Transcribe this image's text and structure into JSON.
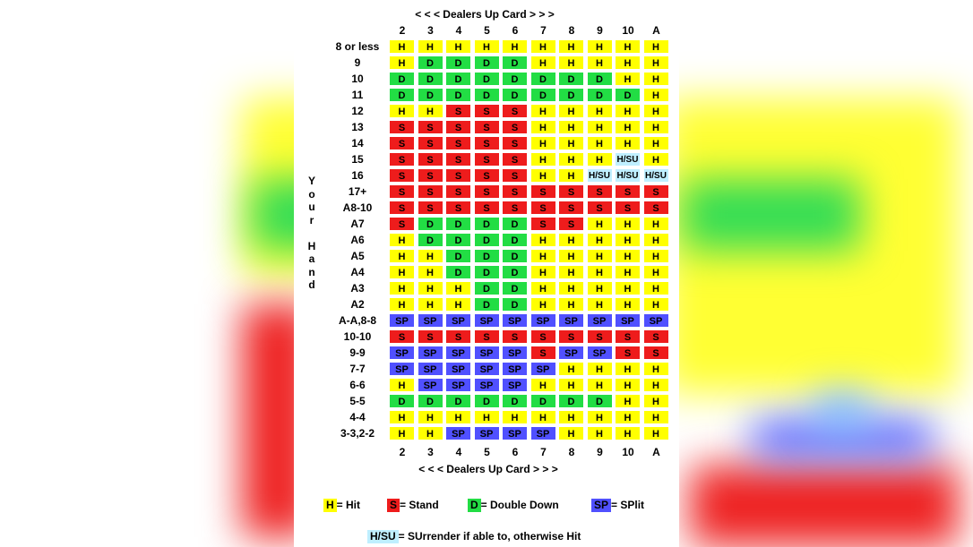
{
  "header": {
    "top": "< < <  Dealers Up Card  > > >",
    "bottom": "< < < Dealers Up Card > > >"
  },
  "dealer_cards": [
    "2",
    "3",
    "4",
    "5",
    "6",
    "7",
    "8",
    "9",
    "10",
    "A"
  ],
  "side_label": [
    "Y",
    "o",
    "u",
    "r",
    "",
    "H",
    "a",
    "n",
    "d"
  ],
  "rows": [
    {
      "label": "8 or less",
      "cells": [
        "H",
        "H",
        "H",
        "H",
        "H",
        "H",
        "H",
        "H",
        "H",
        "H"
      ]
    },
    {
      "label": "9",
      "cells": [
        "H",
        "D",
        "D",
        "D",
        "D",
        "H",
        "H",
        "H",
        "H",
        "H"
      ]
    },
    {
      "label": "10",
      "cells": [
        "D",
        "D",
        "D",
        "D",
        "D",
        "D",
        "D",
        "D",
        "H",
        "H"
      ]
    },
    {
      "label": "11",
      "cells": [
        "D",
        "D",
        "D",
        "D",
        "D",
        "D",
        "D",
        "D",
        "D",
        "H"
      ]
    },
    {
      "label": "12",
      "cells": [
        "H",
        "H",
        "S",
        "S",
        "S",
        "H",
        "H",
        "H",
        "H",
        "H"
      ]
    },
    {
      "label": "13",
      "cells": [
        "S",
        "S",
        "S",
        "S",
        "S",
        "H",
        "H",
        "H",
        "H",
        "H"
      ]
    },
    {
      "label": "14",
      "cells": [
        "S",
        "S",
        "S",
        "S",
        "S",
        "H",
        "H",
        "H",
        "H",
        "H"
      ]
    },
    {
      "label": "15",
      "cells": [
        "S",
        "S",
        "S",
        "S",
        "S",
        "H",
        "H",
        "H",
        "H/SU",
        "H"
      ]
    },
    {
      "label": "16",
      "cells": [
        "S",
        "S",
        "S",
        "S",
        "S",
        "H",
        "H",
        "H/SU",
        "H/SU",
        "H/SU"
      ]
    },
    {
      "label": "17+",
      "cells": [
        "S",
        "S",
        "S",
        "S",
        "S",
        "S",
        "S",
        "S",
        "S",
        "S"
      ]
    },
    {
      "label": "A8-10",
      "cells": [
        "S",
        "S",
        "S",
        "S",
        "S",
        "S",
        "S",
        "S",
        "S",
        "S"
      ]
    },
    {
      "label": "A7",
      "cells": [
        "S",
        "D",
        "D",
        "D",
        "D",
        "S",
        "S",
        "H",
        "H",
        "H"
      ]
    },
    {
      "label": "A6",
      "cells": [
        "H",
        "D",
        "D",
        "D",
        "D",
        "H",
        "H",
        "H",
        "H",
        "H"
      ]
    },
    {
      "label": "A5",
      "cells": [
        "H",
        "H",
        "D",
        "D",
        "D",
        "H",
        "H",
        "H",
        "H",
        "H"
      ]
    },
    {
      "label": "A4",
      "cells": [
        "H",
        "H",
        "D",
        "D",
        "D",
        "H",
        "H",
        "H",
        "H",
        "H"
      ]
    },
    {
      "label": "A3",
      "cells": [
        "H",
        "H",
        "H",
        "D",
        "D",
        "H",
        "H",
        "H",
        "H",
        "H"
      ]
    },
    {
      "label": "A2",
      "cells": [
        "H",
        "H",
        "H",
        "D",
        "D",
        "H",
        "H",
        "H",
        "H",
        "H"
      ]
    },
    {
      "label": "A-A,8-8",
      "cells": [
        "SP",
        "SP",
        "SP",
        "SP",
        "SP",
        "SP",
        "SP",
        "SP",
        "SP",
        "SP"
      ]
    },
    {
      "label": "10-10",
      "cells": [
        "S",
        "S",
        "S",
        "S",
        "S",
        "S",
        "S",
        "S",
        "S",
        "S"
      ]
    },
    {
      "label": "9-9",
      "cells": [
        "SP",
        "SP",
        "SP",
        "SP",
        "SP",
        "S",
        "SP",
        "SP",
        "S",
        "S"
      ]
    },
    {
      "label": "7-7",
      "cells": [
        "SP",
        "SP",
        "SP",
        "SP",
        "SP",
        "SP",
        "H",
        "H",
        "H",
        "H"
      ]
    },
    {
      "label": "6-6",
      "cells": [
        "H",
        "SP",
        "SP",
        "SP",
        "SP",
        "H",
        "H",
        "H",
        "H",
        "H"
      ]
    },
    {
      "label": "5-5",
      "cells": [
        "D",
        "D",
        "D",
        "D",
        "D",
        "D",
        "D",
        "D",
        "H",
        "H"
      ]
    },
    {
      "label": "4-4",
      "cells": [
        "H",
        "H",
        "H",
        "H",
        "H",
        "H",
        "H",
        "H",
        "H",
        "H"
      ]
    },
    {
      "label": "3-3,2-2",
      "cells": [
        "H",
        "H",
        "SP",
        "SP",
        "SP",
        "SP",
        "H",
        "H",
        "H",
        "H"
      ]
    }
  ],
  "legend": {
    "hit": {
      "box": "H",
      "text": "= Hit"
    },
    "stand": {
      "box": "S",
      "text": "= Stand"
    },
    "double": {
      "box": "D",
      "text": "= Double Down"
    },
    "split": {
      "box": "SP",
      "text": "= SPlit"
    },
    "surrender": {
      "box": "H/SU",
      "text": "= SUrrender if able to, otherwise Hit"
    }
  },
  "colors": {
    "hit": "#ffff00",
    "stand": "#ee1c1c",
    "double": "#22dd44",
    "split": "#5050ff",
    "surrender": "#bfefff"
  }
}
